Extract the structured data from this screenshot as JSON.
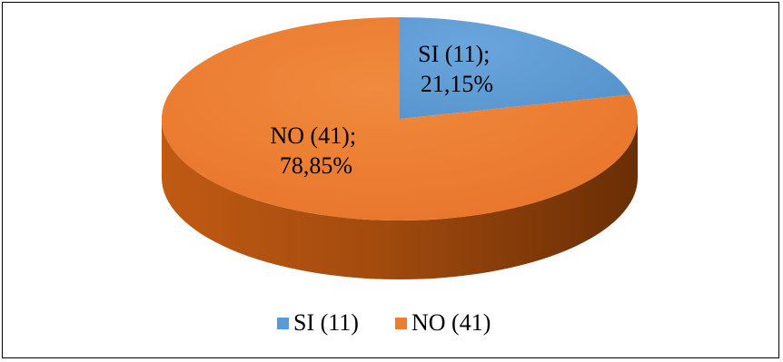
{
  "chart_data": {
    "type": "pie",
    "style": "3d",
    "categories": [
      "SI (11)",
      "NO (41)"
    ],
    "values": [
      11,
      41
    ],
    "percentages": [
      "21,15%",
      "78,85%"
    ],
    "data_labels": [
      [
        "SI (11);",
        "21,15%"
      ],
      [
        "NO (41);",
        "78,85%"
      ]
    ],
    "colors": [
      "#5b9bd5",
      "#ed7d31"
    ],
    "side_colors": [
      "#3f6f9a",
      "#8a3f0a"
    ],
    "legend": {
      "position": "bottom",
      "entries": [
        "SI (11)",
        "NO (41)"
      ]
    },
    "start_angle": "12 o'clock",
    "direction": "clockwise"
  }
}
